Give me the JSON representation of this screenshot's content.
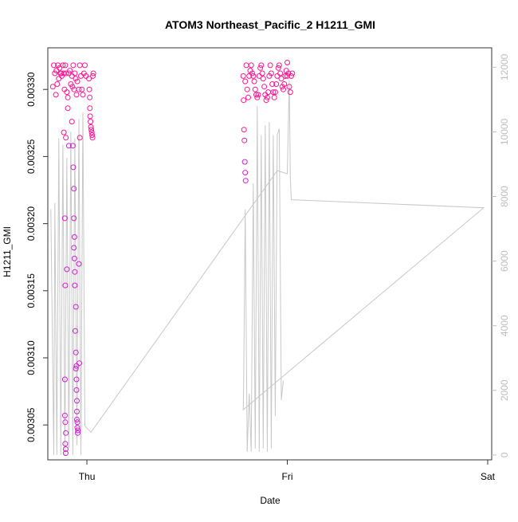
{
  "chart_data": {
    "type": "scatter",
    "title": "ATOM3 Northeast_Pacific_2 H1211_GMI",
    "xlabel": "Date",
    "ylabel": "H1211_GMI",
    "x_tick_labels": [
      "Thu",
      "Fri",
      "Sat"
    ],
    "x_tick_values": [
      0,
      1,
      2
    ],
    "xlim": [
      -0.195,
      2.02
    ],
    "ylim": [
      0.003024,
      0.003331
    ],
    "y_ticks": [
      0.00305,
      0.0031,
      0.00315,
      0.0032,
      0.00325,
      0.0033
    ],
    "y_tick_labels": [
      "0.00305",
      "0.00310",
      "0.00315",
      "0.00320",
      "0.00325",
      "0.00330"
    ],
    "y2_lim": [
      -150,
      12600
    ],
    "y2_ticks": [
      0,
      2000,
      4000,
      6000,
      8000,
      10000,
      12000
    ],
    "y2_tick_labels": [
      "0",
      "2000",
      "4000",
      "6000",
      "8000",
      "10000",
      "12000"
    ],
    "grid": false,
    "colors": {
      "points": "#ff1493",
      "points_alt": "#d020d0",
      "altitude_line": "#c8c8c8",
      "axis": "#333333",
      "right_axis": "#bdbdbd"
    },
    "series": [
      {
        "kind": "points",
        "values": [
          [
            -0.17,
            0.003302
          ],
          [
            -0.165,
            0.003318
          ],
          [
            -0.16,
            0.003312
          ],
          [
            -0.155,
            0.003296
          ],
          [
            -0.152,
            0.003314
          ],
          [
            -0.148,
            0.003304
          ],
          [
            -0.145,
            0.003318
          ],
          [
            -0.14,
            0.003308
          ],
          [
            -0.136,
            0.003316
          ],
          [
            -0.132,
            0.003312
          ],
          [
            -0.128,
            0.003312
          ],
          [
            -0.125,
            0.00331
          ],
          [
            -0.12,
            0.003318
          ],
          [
            -0.116,
            0.003312
          ],
          [
            -0.112,
            0.0033
          ],
          [
            -0.108,
            0.003318
          ],
          [
            -0.104,
            0.003312
          ],
          [
            -0.1,
            0.003298
          ],
          [
            -0.095,
            0.003294
          ],
          [
            -0.09,
            0.003312
          ],
          [
            -0.085,
            0.003314
          ],
          [
            -0.08,
            0.003304
          ],
          [
            -0.075,
            0.00331
          ],
          [
            -0.072,
            0.003302
          ],
          [
            -0.068,
            0.003318
          ],
          [
            -0.064,
            0.0033
          ],
          [
            -0.06,
            0.003312
          ],
          [
            -0.056,
            0.003308
          ],
          [
            -0.052,
            0.003296
          ],
          [
            -0.048,
            0.003306
          ],
          [
            -0.04,
            0.0033
          ],
          [
            -0.035,
            0.003318
          ],
          [
            -0.03,
            0.00331
          ],
          [
            -0.025,
            0.0033
          ],
          [
            -0.02,
            0.003296
          ],
          [
            -0.015,
            0.003312
          ],
          [
            -0.01,
            0.003318
          ],
          [
            -0.005,
            0.00331
          ],
          [
            -0.115,
            0.003268
          ],
          [
            -0.11,
            0.003204
          ],
          [
            -0.108,
            0.003154
          ],
          [
            -0.105,
            0.003264
          ],
          [
            -0.1,
            0.003166
          ],
          [
            -0.11,
            0.003084
          ],
          [
            -0.11,
            0.003057
          ],
          [
            -0.108,
            0.003052
          ],
          [
            -0.105,
            0.003044
          ],
          [
            -0.108,
            0.003036
          ],
          [
            -0.106,
            0.003032
          ],
          [
            -0.106,
            0.003029
          ],
          [
            -0.095,
            0.003286
          ],
          [
            -0.09,
            0.003258
          ],
          [
            -0.075,
            0.003276
          ],
          [
            -0.07,
            0.003258
          ],
          [
            -0.068,
            0.003242
          ],
          [
            -0.065,
            0.003226
          ],
          [
            -0.065,
            0.003204
          ],
          [
            -0.062,
            0.00319
          ],
          [
            -0.065,
            0.003182
          ],
          [
            -0.062,
            0.003174
          ],
          [
            -0.06,
            0.003164
          ],
          [
            -0.06,
            0.003154
          ],
          [
            -0.055,
            0.003138
          ],
          [
            -0.058,
            0.00312
          ],
          [
            -0.055,
            0.003104
          ],
          [
            -0.055,
            0.003092
          ],
          [
            -0.052,
            0.003094
          ],
          [
            -0.052,
            0.003084
          ],
          [
            -0.052,
            0.003076
          ],
          [
            -0.05,
            0.003068
          ],
          [
            -0.05,
            0.00306
          ],
          [
            -0.05,
            0.003054
          ],
          [
            -0.048,
            0.003048
          ],
          [
            -0.046,
            0.003044
          ],
          [
            -0.045,
            0.003046
          ],
          [
            -0.048,
            0.003052
          ],
          [
            -0.04,
            0.00317
          ],
          [
            -0.038,
            0.003096
          ],
          [
            -0.035,
            0.003264
          ],
          [
            0.01,
            0.003308
          ],
          [
            0.012,
            0.0033
          ],
          [
            0.014,
            0.003294
          ],
          [
            0.015,
            0.003286
          ],
          [
            0.016,
            0.00328
          ],
          [
            0.018,
            0.003276
          ],
          [
            0.02,
            0.003272
          ],
          [
            0.022,
            0.00327
          ],
          [
            0.024,
            0.003268
          ],
          [
            0.026,
            0.003266
          ],
          [
            0.028,
            0.003264
          ],
          [
            0.03,
            0.00331
          ],
          [
            0.032,
            0.003312
          ],
          [
            0.78,
            0.00331
          ],
          [
            0.79,
            0.003306
          ],
          [
            0.795,
            0.003318
          ],
          [
            0.8,
            0.0033
          ],
          [
            0.805,
            0.003294
          ],
          [
            0.81,
            0.00331
          ],
          [
            0.815,
            0.003314
          ],
          [
            0.82,
            0.003318
          ],
          [
            0.825,
            0.003312
          ],
          [
            0.83,
            0.00331
          ],
          [
            0.835,
            0.003306
          ],
          [
            0.84,
            0.0033
          ],
          [
            0.845,
            0.003296
          ],
          [
            0.85,
            0.003294
          ],
          [
            0.855,
            0.003296
          ],
          [
            0.86,
            0.00331
          ],
          [
            0.865,
            0.003316
          ],
          [
            0.87,
            0.003318
          ],
          [
            0.875,
            0.003312
          ],
          [
            0.88,
            0.003308
          ],
          [
            0.885,
            0.003302
          ],
          [
            0.89,
            0.003296
          ],
          [
            0.895,
            0.003292
          ],
          [
            0.9,
            0.003294
          ],
          [
            0.905,
            0.003298
          ],
          [
            0.91,
            0.00331
          ],
          [
            0.915,
            0.003318
          ],
          [
            0.92,
            0.003312
          ],
          [
            0.925,
            0.003304
          ],
          [
            0.93,
            0.003298
          ],
          [
            0.935,
            0.003294
          ],
          [
            0.94,
            0.003298
          ],
          [
            0.945,
            0.003304
          ],
          [
            0.95,
            0.00331
          ],
          [
            0.955,
            0.003316
          ],
          [
            0.96,
            0.003318
          ],
          [
            0.965,
            0.003312
          ],
          [
            0.97,
            0.003308
          ],
          [
            0.975,
            0.003302
          ],
          [
            0.98,
            0.0033
          ],
          [
            0.985,
            0.003304
          ],
          [
            0.99,
            0.00331
          ],
          [
            0.995,
            0.003314
          ],
          [
            1.0,
            0.00331
          ],
          [
            0.782,
            0.003292
          ],
          [
            0.784,
            0.00327
          ],
          [
            0.786,
            0.003262
          ],
          [
            0.788,
            0.003246
          ],
          [
            0.79,
            0.003238
          ],
          [
            0.792,
            0.003232
          ],
          [
            1.0,
            0.00332
          ],
          [
            1.005,
            0.003312
          ],
          [
            1.01,
            0.003302
          ],
          [
            1.015,
            0.003298
          ],
          [
            1.02,
            0.00331
          ],
          [
            1.025,
            0.003312
          ]
        ]
      },
      {
        "kind": "line",
        "axis": "right",
        "values": [
          [
            -0.18,
            7600
          ],
          [
            -0.165,
            0
          ],
          [
            -0.16,
            7800
          ],
          [
            -0.15,
            0
          ],
          [
            -0.14,
            9800
          ],
          [
            -0.13,
            0
          ],
          [
            -0.12,
            9600
          ],
          [
            -0.11,
            0
          ],
          [
            -0.1,
            9200
          ],
          [
            -0.09,
            200
          ],
          [
            -0.08,
            10000
          ],
          [
            -0.07,
            0
          ],
          [
            -0.06,
            9800
          ],
          [
            -0.05,
            300
          ],
          [
            -0.04,
            10400
          ],
          [
            -0.03,
            0
          ],
          [
            -0.02,
            10600
          ],
          [
            -0.01,
            900
          ],
          [
            0.02,
            700
          ],
          [
            0.95,
            8800
          ],
          [
            1.0,
            8700
          ],
          [
            1.01,
            11600
          ],
          [
            1.015,
            8600
          ],
          [
            1.02,
            7900
          ],
          [
            1.98,
            7650
          ],
          [
            0.78,
            1400
          ],
          [
            0.782,
            2100
          ],
          [
            0.79,
            7600
          ],
          [
            0.8,
            100
          ],
          [
            0.81,
            1900
          ],
          [
            0.82,
            100
          ],
          [
            0.83,
            8400
          ],
          [
            0.84,
            200
          ],
          [
            0.85,
            10800
          ],
          [
            0.86,
            100
          ],
          [
            0.87,
            9900
          ],
          [
            0.88,
            200
          ],
          [
            0.89,
            10200
          ],
          [
            0.9,
            100
          ],
          [
            0.91,
            10300
          ],
          [
            0.92,
            200
          ],
          [
            0.93,
            9900
          ],
          [
            0.94,
            1200
          ],
          [
            0.95,
            9900
          ],
          [
            0.96,
            10100
          ],
          [
            0.97,
            1700
          ],
          [
            0.98,
            2300
          ]
        ]
      }
    ]
  }
}
